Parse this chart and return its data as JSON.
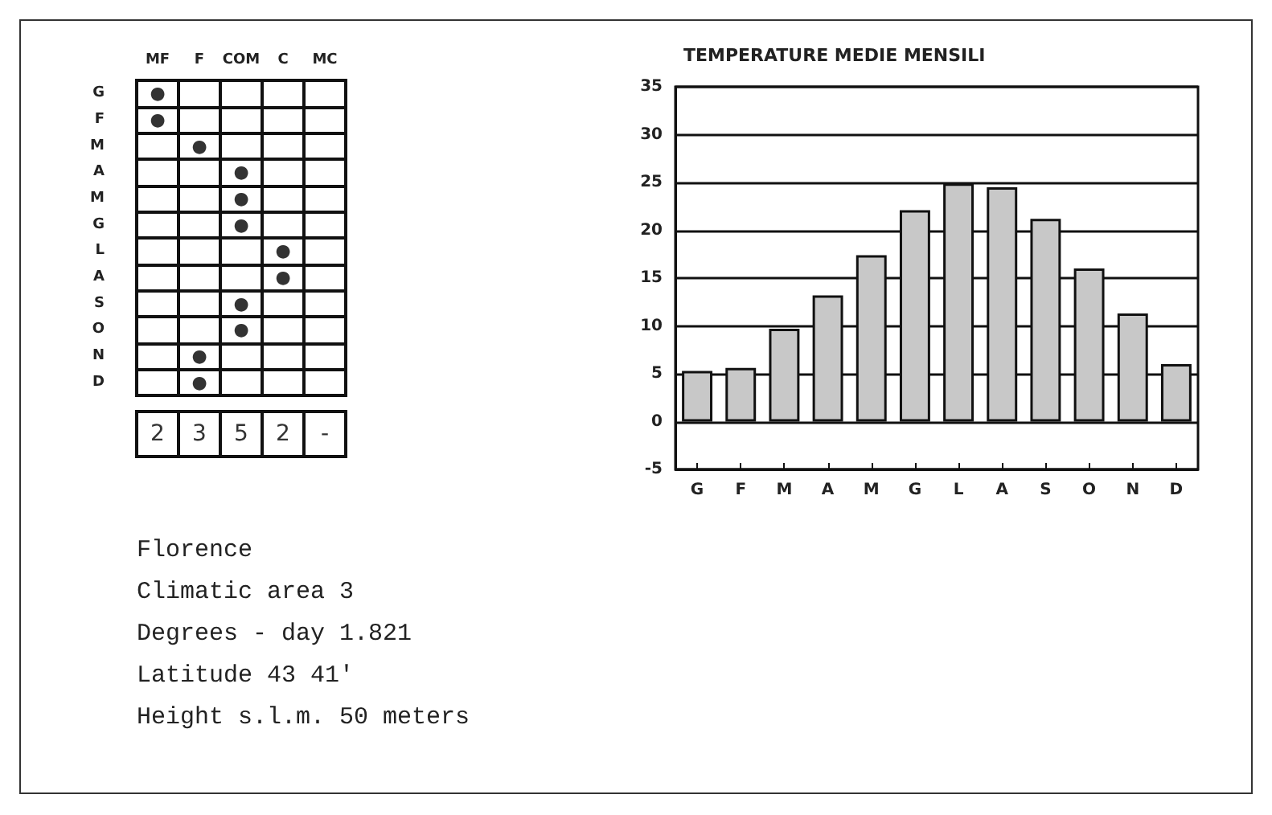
{
  "chart_data": [
    {
      "type": "other",
      "categories": [
        "MF",
        "F",
        "COM",
        "C",
        "MC"
      ],
      "y_categories": [
        "G",
        "F",
        "M",
        "A",
        "M",
        "G",
        "L",
        "A",
        "S",
        "O",
        "N",
        "D"
      ],
      "cell_labels": [
        [
          "●",
          null,
          null,
          null,
          null
        ],
        [
          "●",
          null,
          null,
          null,
          null
        ],
        [
          null,
          "●",
          null,
          null,
          null
        ],
        [
          null,
          null,
          "●",
          null,
          null
        ],
        [
          null,
          null,
          "●",
          null,
          null
        ],
        [
          null,
          null,
          "●",
          null,
          null
        ],
        [
          null,
          null,
          null,
          "●",
          null
        ],
        [
          null,
          null,
          null,
          "●",
          null
        ],
        [
          null,
          null,
          "●",
          null,
          null
        ],
        [
          null,
          null,
          "●",
          null,
          null
        ],
        [
          null,
          "●",
          null,
          null,
          null
        ],
        [
          null,
          "●",
          null,
          null,
          null
        ]
      ]
    },
    {
      "type": "other",
      "cell_labels": [
        [
          "2",
          "3",
          "5",
          "2",
          "-"
        ]
      ]
    },
    {
      "type": "bar",
      "title": "TEMPERATURE MEDIE MENSILI",
      "categories": [
        "G",
        "F",
        "M",
        "A",
        "M",
        "G",
        "L",
        "A",
        "S",
        "O",
        "N",
        "D"
      ],
      "values": [
        5.3,
        5.6,
        9.7,
        13.2,
        17.4,
        22.1,
        24.9,
        24.5,
        21.2,
        16.0,
        11.3,
        6.0
      ],
      "color": "#c8c8c8",
      "ylim": [
        -5,
        35
      ],
      "yticks": [
        -5,
        0,
        5,
        10,
        15,
        20,
        25,
        30,
        35
      ],
      "grid": "y"
    },
    {
      "type": "other",
      "annotations": [
        "Florence",
        "Climatic area 3",
        "Degrees - day 1.821",
        "Latitude 43 41'",
        "Height s.l.m.  50 meters"
      ]
    }
  ]
}
